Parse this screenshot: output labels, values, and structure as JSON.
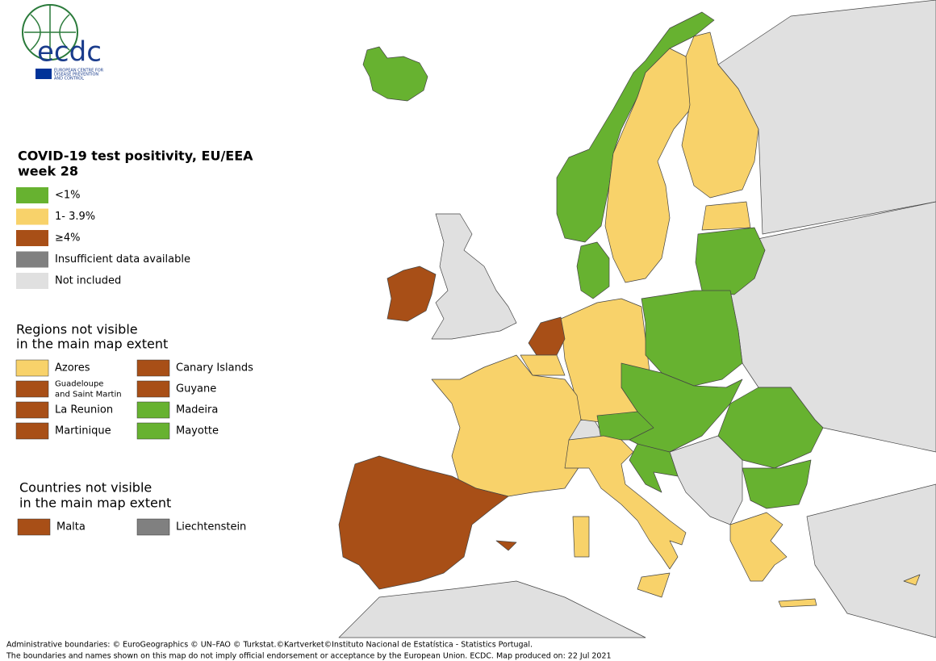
{
  "logo": {
    "name": "ecdc",
    "org": [
      "EUROPEAN CENTRE FOR",
      "DISEASE PREVENTION",
      "AND CONTROL"
    ]
  },
  "legend": {
    "title": [
      "COVID-19 test positivity, EU/EEA",
      "week 28"
    ],
    "items": [
      {
        "label": "<1%",
        "color": "#67b230"
      },
      {
        "label": "1- 3.9%",
        "color": "#f8d26a"
      },
      {
        "label": "≥4%",
        "color": "#a84f17"
      },
      {
        "label": "Insufficient data available",
        "color": "#808080"
      },
      {
        "label": "Not included",
        "color": "#e0e0e0"
      }
    ]
  },
  "regions": {
    "title": [
      "Regions not visible",
      "in the main map extent"
    ],
    "items": [
      {
        "label": [
          "Azores"
        ],
        "color": "#f8d26a"
      },
      {
        "label": [
          "Canary Islands"
        ],
        "color": "#a84f17"
      },
      {
        "label": [
          "Guadeloupe",
          "and Saint Martin"
        ],
        "color": "#a84f17"
      },
      {
        "label": [
          "Guyane"
        ],
        "color": "#a84f17"
      },
      {
        "label": [
          "La Reunion"
        ],
        "color": "#a84f17"
      },
      {
        "label": [
          "Madeira"
        ],
        "color": "#67b230"
      },
      {
        "label": [
          "Martinique"
        ],
        "color": "#a84f17"
      },
      {
        "label": [
          "Mayotte"
        ],
        "color": "#67b230"
      }
    ]
  },
  "countries": {
    "title": [
      "Countries not visible",
      "in the main map extent"
    ],
    "items": [
      {
        "label": "Malta",
        "color": "#a84f17"
      },
      {
        "label": "Liechtenstein",
        "color": "#808080"
      }
    ]
  },
  "footer": [
    "Administrative boundaries: © EuroGeographics © UN–FAO © Turkstat.©Kartverket©Instituto Nacional de Estatística - Statistics Portugal.",
    "The boundaries and names shown on this map do not imply official endorsement or acceptance by the European Union. ECDC. Map produced on: 22 Jul 2021"
  ]
}
